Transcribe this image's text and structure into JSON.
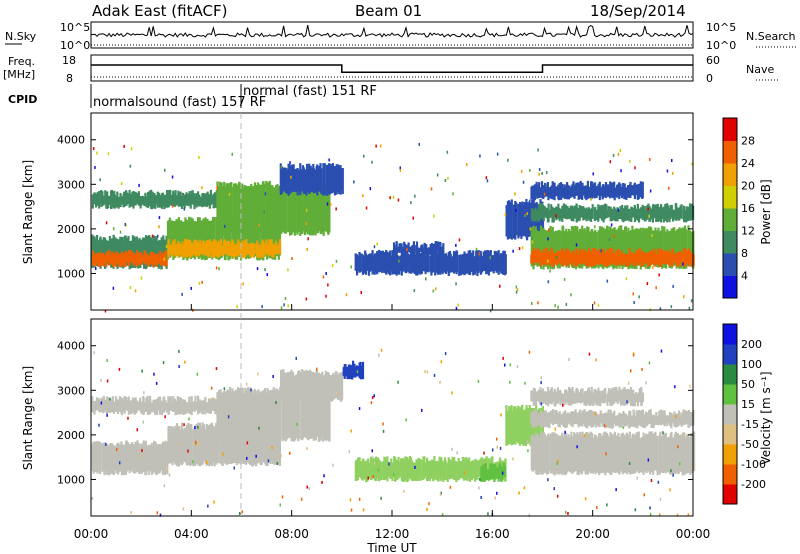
{
  "header": {
    "station": "Adak East (fitACF)",
    "beam": "Beam 01",
    "date": "18/Sep/2014"
  },
  "top_panels": {
    "nsky_label": "N.Sky",
    "nsky_ticks": [
      "10^5",
      "10^0"
    ],
    "nsearch_label": "N.Search",
    "nsearch_ticks": [
      "10^5",
      "10^0"
    ],
    "freq_label": "Freq.",
    "freq_unit": "[MHz]",
    "freq_ticks": [
      "18",
      "8"
    ],
    "nave_label": "Nave",
    "nave_ticks": [
      "60",
      "0"
    ],
    "cpid_label": "CPID",
    "cpid_segments": [
      {
        "name": "normalsound (fast) 157 RF",
        "start_h": 0,
        "end_h": 6
      },
      {
        "name": "normal (fast) 151 RF",
        "start_h": 6,
        "end_h": 24
      }
    ],
    "freq_steps": [
      {
        "start_h": 0,
        "end_h": 10,
        "level": 1.0
      },
      {
        "start_h": 10,
        "end_h": 18,
        "level": 0.55
      },
      {
        "start_h": 18,
        "end_h": 24,
        "level": 1.0
      }
    ]
  },
  "chart_data": [
    {
      "type": "heatmap",
      "name": "power",
      "ylabel": "Slant Range [km]",
      "yticks": [
        1000,
        2000,
        3000,
        4000
      ],
      "ylim": [
        180,
        4600
      ],
      "xlim": [
        0,
        24
      ],
      "colorbar_label": "Power [dB]",
      "colorbar_ticks": [
        "4",
        "8",
        "12",
        "16",
        "20",
        "24",
        "28"
      ],
      "colorbar_colors": [
        "#1010e0",
        "#2a4fb0",
        "#3f8a60",
        "#60ad38",
        "#d0d000",
        "#f0a000",
        "#f06000",
        "#e00000"
      ],
      "regions": [
        {
          "t0": 0.0,
          "t1": 3.0,
          "r_lo": 1150,
          "r_hi": 1800,
          "color": "#3f8a60"
        },
        {
          "t0": 0.0,
          "t1": 3.0,
          "r_lo": 1200,
          "r_hi": 1450,
          "color": "#f06000"
        },
        {
          "t0": 3.0,
          "t1": 7.5,
          "r_lo": 1350,
          "r_hi": 2200,
          "color": "#60ad38"
        },
        {
          "t0": 3.0,
          "t1": 7.5,
          "r_lo": 1400,
          "r_hi": 1700,
          "color": "#f0a000"
        },
        {
          "t0": 0.0,
          "t1": 5.0,
          "r_lo": 2500,
          "r_hi": 2800,
          "color": "#3f8a60"
        },
        {
          "t0": 5.0,
          "t1": 9.5,
          "r_lo": 1900,
          "r_hi": 3000,
          "color": "#60ad38"
        },
        {
          "t0": 7.5,
          "t1": 10.0,
          "r_lo": 2800,
          "r_hi": 3400,
          "color": "#2a4fb0"
        },
        {
          "t0": 10.5,
          "t1": 16.5,
          "r_lo": 1000,
          "r_hi": 1450,
          "color": "#2a4fb0"
        },
        {
          "t0": 12.0,
          "t1": 14.0,
          "r_lo": 1450,
          "r_hi": 1650,
          "color": "#2a4fb0"
        },
        {
          "t0": 16.5,
          "t1": 18.0,
          "r_lo": 1800,
          "r_hi": 2600,
          "color": "#2a4fb0"
        },
        {
          "t0": 17.5,
          "t1": 24.0,
          "r_lo": 1150,
          "r_hi": 2000,
          "color": "#60ad38"
        },
        {
          "t0": 17.5,
          "t1": 24.0,
          "r_lo": 1200,
          "r_hi": 1500,
          "color": "#f06000"
        },
        {
          "t0": 17.5,
          "t1": 24.0,
          "r_lo": 2200,
          "r_hi": 2500,
          "color": "#3f8a60"
        },
        {
          "t0": 17.5,
          "t1": 22.0,
          "r_lo": 2700,
          "r_hi": 3000,
          "color": "#2a4fb0"
        }
      ]
    },
    {
      "type": "heatmap",
      "name": "velocity",
      "ylabel": "Slant Range [km]",
      "yticks": [
        1000,
        2000,
        3000,
        4000
      ],
      "ylim": [
        180,
        4600
      ],
      "xlim": [
        0,
        24
      ],
      "xticks": [
        "00:00",
        "04:00",
        "08:00",
        "12:00",
        "16:00",
        "20:00",
        "00:00"
      ],
      "xlabel": "Time UT",
      "colorbar_label": "Velocity [m s⁻¹]",
      "colorbar_ticks": [
        "-200",
        "-100",
        "-50",
        "-15",
        "15",
        "50",
        "100",
        "200"
      ],
      "colorbar_colors": [
        "#e00000",
        "#f06000",
        "#f0a000",
        "#e0c080",
        "#c0c0b8",
        "#60c040",
        "#2a8a40",
        "#2040c0",
        "#1010e0"
      ],
      "regions": [
        {
          "t0": 0.0,
          "t1": 3.0,
          "r_lo": 1150,
          "r_hi": 1800,
          "color": "#c0c0b8"
        },
        {
          "t0": 3.0,
          "t1": 7.5,
          "r_lo": 1350,
          "r_hi": 2200,
          "color": "#c0c0b8"
        },
        {
          "t0": 0.0,
          "t1": 5.0,
          "r_lo": 2500,
          "r_hi": 2800,
          "color": "#c0c0b8"
        },
        {
          "t0": 5.0,
          "t1": 9.5,
          "r_lo": 1900,
          "r_hi": 3000,
          "color": "#c0c0b8"
        },
        {
          "t0": 7.5,
          "t1": 10.0,
          "r_lo": 2800,
          "r_hi": 3400,
          "color": "#c0c0b8"
        },
        {
          "t0": 10.0,
          "t1": 10.8,
          "r_lo": 3300,
          "r_hi": 3600,
          "color": "#2040c0"
        },
        {
          "t0": 10.5,
          "t1": 16.5,
          "r_lo": 1000,
          "r_hi": 1450,
          "color": "#8fd060"
        },
        {
          "t0": 15.5,
          "t1": 16.5,
          "r_lo": 1000,
          "r_hi": 1300,
          "color": "#60c040"
        },
        {
          "t0": 16.5,
          "t1": 18.0,
          "r_lo": 1800,
          "r_hi": 2600,
          "color": "#8fd060"
        },
        {
          "t0": 17.5,
          "t1": 24.0,
          "r_lo": 1150,
          "r_hi": 2000,
          "color": "#c0c0b8"
        },
        {
          "t0": 17.5,
          "t1": 24.0,
          "r_lo": 2200,
          "r_hi": 2500,
          "color": "#c0c0b8"
        },
        {
          "t0": 17.5,
          "t1": 22.0,
          "r_lo": 2700,
          "r_hi": 3000,
          "color": "#c0c0b8"
        }
      ]
    }
  ]
}
